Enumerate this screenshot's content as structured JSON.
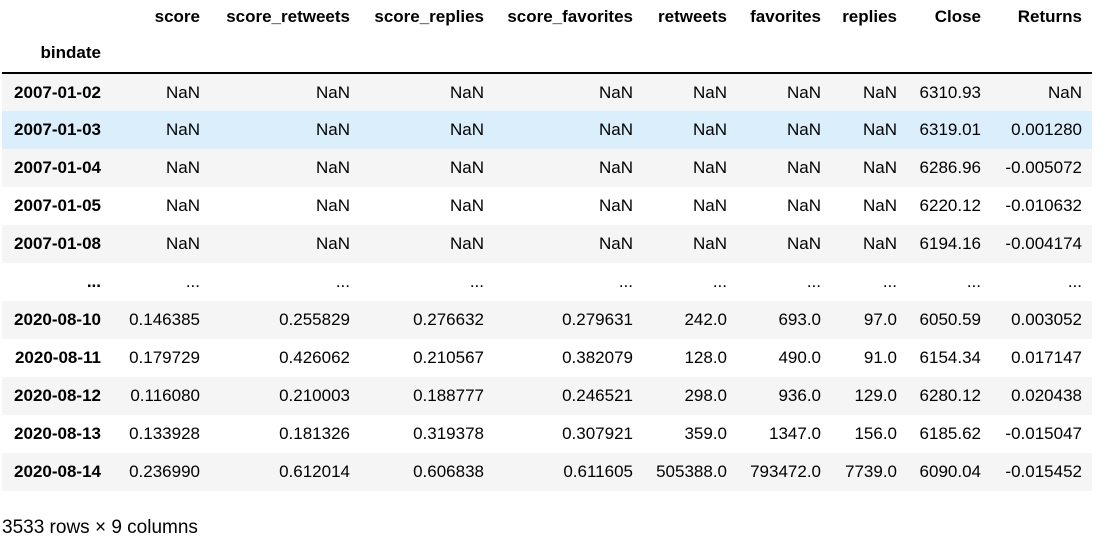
{
  "dataframe": {
    "columns": [
      "score",
      "score_retweets",
      "score_replies",
      "score_favorites",
      "retweets",
      "favorites",
      "replies",
      "Close",
      "Returns"
    ],
    "index_name": "bindate",
    "rows": [
      {
        "index": "2007-01-02",
        "values": [
          "NaN",
          "NaN",
          "NaN",
          "NaN",
          "NaN",
          "NaN",
          "NaN",
          "6310.93",
          "NaN"
        ]
      },
      {
        "index": "2007-01-03",
        "values": [
          "NaN",
          "NaN",
          "NaN",
          "NaN",
          "NaN",
          "NaN",
          "NaN",
          "6319.01",
          "0.001280"
        ],
        "highlighted": true
      },
      {
        "index": "2007-01-04",
        "values": [
          "NaN",
          "NaN",
          "NaN",
          "NaN",
          "NaN",
          "NaN",
          "NaN",
          "6286.96",
          "-0.005072"
        ]
      },
      {
        "index": "2007-01-05",
        "values": [
          "NaN",
          "NaN",
          "NaN",
          "NaN",
          "NaN",
          "NaN",
          "NaN",
          "6220.12",
          "-0.010632"
        ]
      },
      {
        "index": "2007-01-08",
        "values": [
          "NaN",
          "NaN",
          "NaN",
          "NaN",
          "NaN",
          "NaN",
          "NaN",
          "6194.16",
          "-0.004174"
        ]
      },
      {
        "index": "...",
        "values": [
          "...",
          "...",
          "...",
          "...",
          "...",
          "...",
          "...",
          "...",
          "..."
        ]
      },
      {
        "index": "2020-08-10",
        "values": [
          "0.146385",
          "0.255829",
          "0.276632",
          "0.279631",
          "242.0",
          "693.0",
          "97.0",
          "6050.59",
          "0.003052"
        ]
      },
      {
        "index": "2020-08-11",
        "values": [
          "0.179729",
          "0.426062",
          "0.210567",
          "0.382079",
          "128.0",
          "490.0",
          "91.0",
          "6154.34",
          "0.017147"
        ]
      },
      {
        "index": "2020-08-12",
        "values": [
          "0.116080",
          "0.210003",
          "0.188777",
          "0.246521",
          "298.0",
          "936.0",
          "129.0",
          "6280.12",
          "0.020438"
        ]
      },
      {
        "index": "2020-08-13",
        "values": [
          "0.133928",
          "0.181326",
          "0.319378",
          "0.307921",
          "359.0",
          "1347.0",
          "156.0",
          "6185.62",
          "-0.015047"
        ]
      },
      {
        "index": "2020-08-14",
        "values": [
          "0.236990",
          "0.612014",
          "0.606838",
          "0.611605",
          "505388.0",
          "793472.0",
          "7739.0",
          "6090.04",
          "-0.015452"
        ]
      }
    ],
    "footer": "3533 rows × 9 columns"
  },
  "colors": {
    "row_stripe": "#f5f5f5",
    "row_hover": "#dbeefb",
    "header_rule": "#000000"
  }
}
